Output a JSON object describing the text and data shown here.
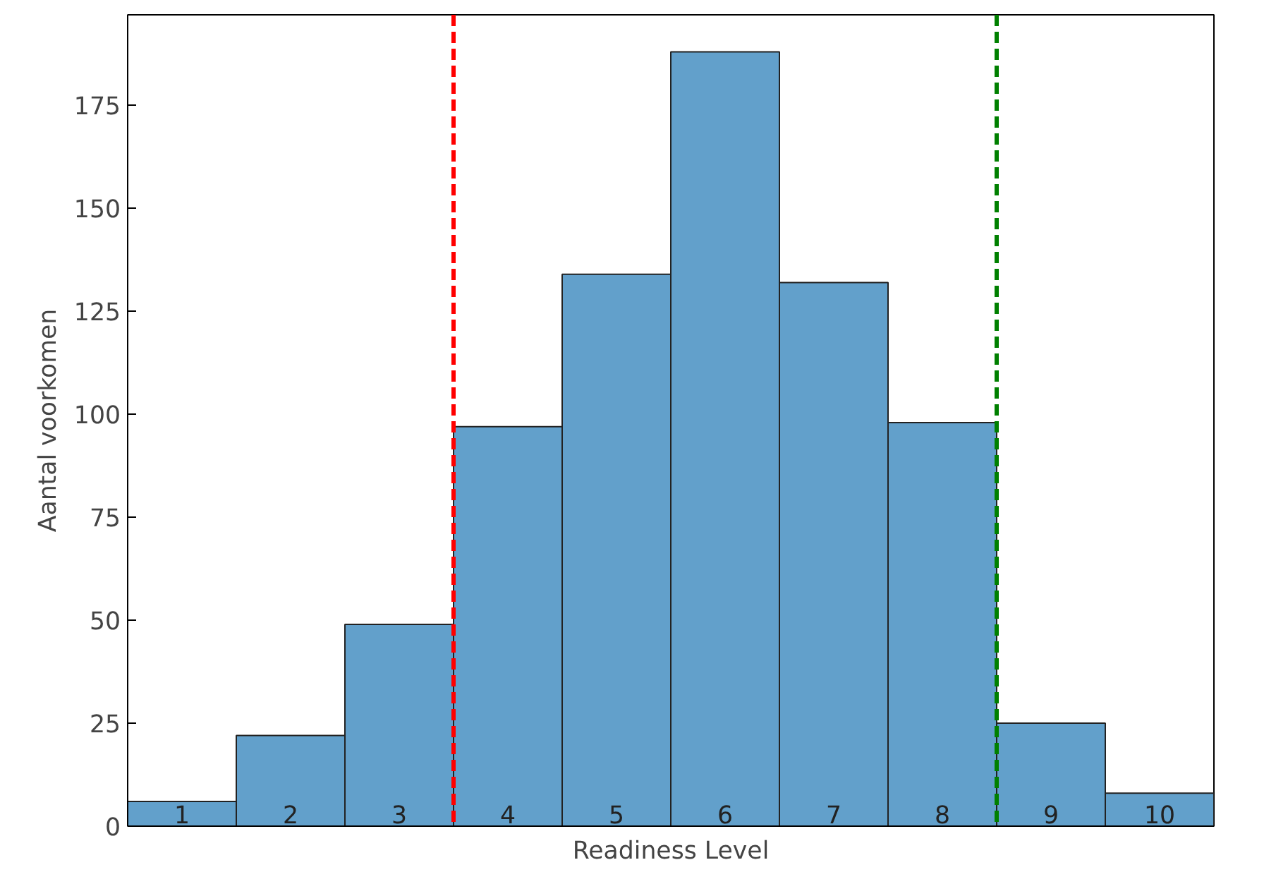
{
  "chart_data": {
    "type": "histogram",
    "xlabel": "Readiness Level",
    "ylabel": "Aantal voorkomen",
    "bins": [
      0.5,
      1.5,
      2.5,
      3.5,
      4.5,
      5.5,
      6.5,
      7.5,
      8.5,
      9.5,
      10.5
    ],
    "values": [
      6,
      22,
      49,
      97,
      134,
      188,
      132,
      98,
      25,
      8
    ],
    "color": "#62a0cb",
    "xlim": [
      0.5,
      10.5
    ],
    "ylim": [
      0,
      197
    ],
    "yticks": [
      0,
      25,
      50,
      75,
      100,
      125,
      150,
      175
    ],
    "xticks": [
      1,
      2,
      3,
      4,
      5,
      6,
      7,
      8,
      9,
      10
    ],
    "grid": false,
    "ref_lines": [
      {
        "axis": "x",
        "value": 3.5,
        "color": "#ff0000",
        "line_style": "dashed"
      },
      {
        "axis": "x",
        "value": 8.5,
        "color": "#008000",
        "line_style": "dashed"
      }
    ]
  }
}
